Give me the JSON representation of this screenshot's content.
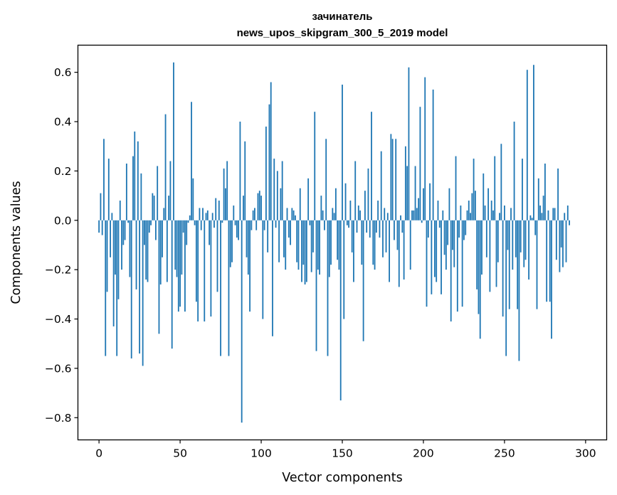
{
  "chart_data": {
    "type": "bar",
    "title_line1": "зачинатель",
    "title_line2": "news_upos_skipgram_300_5_2019 model",
    "xlabel": "Vector components",
    "ylabel": "Components values",
    "xlim": [
      -13,
      313
    ],
    "ylim": [
      -0.89,
      0.71
    ],
    "xticks": [
      0,
      50,
      100,
      150,
      200,
      250,
      300
    ],
    "xtick_labels": [
      "0",
      "50",
      "100",
      "150",
      "200",
      "250",
      "300"
    ],
    "yticks": [
      -0.8,
      -0.6,
      -0.4,
      -0.2,
      0.0,
      0.2,
      0.4,
      0.6
    ],
    "ytick_labels": [
      "−0.8",
      "−0.6",
      "−0.4",
      "−0.2",
      "0.0",
      "0.2",
      "0.4",
      "0.6"
    ],
    "bar_color": "#1f77b4",
    "grid": false,
    "values": [
      -0.05,
      0.11,
      -0.06,
      0.33,
      -0.55,
      -0.29,
      0.25,
      -0.15,
      0.03,
      -0.43,
      -0.22,
      -0.55,
      -0.32,
      0.08,
      -0.2,
      -0.1,
      -0.08,
      0.23,
      -0.01,
      -0.23,
      -0.56,
      0.26,
      0.36,
      -0.28,
      0.32,
      -0.54,
      0.19,
      -0.59,
      -0.1,
      -0.24,
      -0.25,
      -0.05,
      -0.02,
      0.11,
      0.1,
      -0.08,
      0.22,
      -0.46,
      -0.26,
      -0.15,
      0.05,
      0.43,
      -0.25,
      0.1,
      0.24,
      -0.52,
      0.64,
      -0.2,
      -0.23,
      -0.37,
      -0.35,
      -0.22,
      -0.05,
      -0.37,
      -0.1,
      -0.01,
      0.02,
      0.48,
      0.17,
      -0.02,
      -0.33,
      -0.41,
      0.05,
      -0.04,
      0.05,
      -0.41,
      0.03,
      0.04,
      -0.1,
      -0.39,
      0.03,
      -0.03,
      0.09,
      -0.29,
      0.08,
      -0.55,
      -0.01,
      0.21,
      0.13,
      0.24,
      -0.55,
      -0.19,
      -0.17,
      0.06,
      -0.02,
      -0.07,
      -0.08,
      0.4,
      -0.82,
      0.1,
      0.32,
      -0.15,
      -0.22,
      -0.37,
      -0.04,
      0.04,
      0.05,
      -0.04,
      0.11,
      0.12,
      0.1,
      -0.4,
      -0.04,
      0.38,
      -0.13,
      0.47,
      0.56,
      -0.47,
      0.25,
      -0.03,
      0.2,
      -0.17,
      0.13,
      0.24,
      -0.15,
      -0.2,
      0.05,
      -0.07,
      -0.1,
      0.05,
      0.04,
      0.02,
      -0.17,
      -0.2,
      0.13,
      -0.25,
      -0.18,
      -0.26,
      -0.25,
      0.17,
      -0.02,
      -0.21,
      -0.13,
      0.44,
      -0.53,
      -0.2,
      -0.22,
      0.1,
      0.04,
      -0.04,
      0.33,
      -0.55,
      -0.23,
      -0.18,
      0.05,
      0.03,
      0.13,
      -0.16,
      -0.2,
      -0.73,
      0.55,
      -0.4,
      0.15,
      -0.02,
      -0.03,
      0.08,
      -0.13,
      -0.25,
      0.24,
      -0.05,
      0.06,
      0.04,
      -0.18,
      -0.49,
      0.12,
      -0.05,
      0.21,
      -0.07,
      0.44,
      -0.18,
      -0.2,
      -0.05,
      0.08,
      -0.07,
      0.28,
      -0.15,
      0.05,
      -0.13,
      0.03,
      -0.25,
      0.35,
      0.33,
      -0.08,
      0.33,
      -0.12,
      -0.27,
      0.02,
      -0.05,
      -0.24,
      0.3,
      0.22,
      0.62,
      -0.2,
      0.04,
      0.04,
      0.22,
      0.05,
      0.09,
      0.46,
      -0.01,
      0.13,
      0.58,
      -0.35,
      -0.07,
      0.15,
      -0.3,
      0.53,
      -0.23,
      -0.25,
      0.08,
      -0.03,
      -0.3,
      0.04,
      -0.14,
      -0.2,
      -0.1,
      0.13,
      -0.41,
      -0.12,
      -0.19,
      0.26,
      -0.37,
      -0.07,
      0.06,
      -0.35,
      -0.08,
      -0.06,
      0.04,
      0.08,
      0.03,
      0.11,
      0.25,
      0.12,
      -0.28,
      -0.38,
      -0.48,
      -0.22,
      0.19,
      0.06,
      -0.15,
      0.13,
      -0.29,
      0.08,
      0.04,
      0.26,
      -0.27,
      -0.17,
      0.03,
      0.31,
      -0.39,
      0.06,
      -0.55,
      -0.12,
      -0.36,
      0.05,
      -0.2,
      0.4,
      -0.15,
      -0.36,
      -0.57,
      -0.13,
      0.25,
      -0.19,
      -0.16,
      0.61,
      -0.24,
      0.02,
      0.01,
      0.63,
      -0.06,
      -0.36,
      0.17,
      0.06,
      0.03,
      0.1,
      0.23,
      -0.33,
      0.04,
      -0.33,
      -0.48,
      0.05,
      0.05,
      -0.16,
      0.21,
      -0.21,
      -0.11,
      -0.19,
      0.03,
      -0.17,
      0.06,
      -0.02
    ]
  }
}
